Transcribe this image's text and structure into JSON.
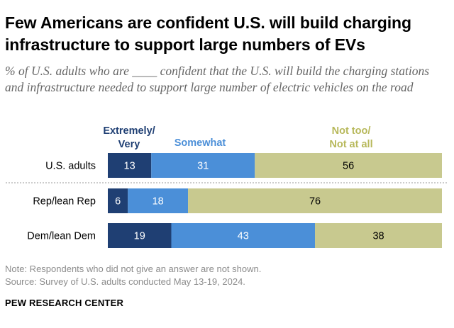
{
  "title": "Few Americans are confident U.S. will build charging infrastructure to support large numbers of EVs",
  "subtitle": "% of U.S. adults who are ____ confident that the U.S. will build the charging stations and infrastructure needed to support large number of electric vehicles on the road",
  "chart_data": {
    "type": "bar",
    "orientation": "horizontal",
    "stacked": true,
    "categories": [
      "U.S. adults",
      "Rep/lean Rep",
      "Dem/lean Dem"
    ],
    "series": [
      {
        "name": "Extremely/ Very",
        "legend_lines": [
          "Extremely/",
          "Very"
        ],
        "values": [
          13,
          6,
          19
        ],
        "color": "#1f3f73",
        "label_color": "#ffffff"
      },
      {
        "name": "Somewhat",
        "legend_lines": [
          "Somewhat"
        ],
        "values": [
          31,
          18,
          43
        ],
        "color": "#4b8fd8",
        "label_color": "#ffffff"
      },
      {
        "name": "Not too/ Not at all",
        "legend_lines": [
          "Not too/",
          "Not at all"
        ],
        "values": [
          56,
          76,
          38
        ],
        "color": "#c8c98f",
        "label_color": "#000000"
      }
    ],
    "xlim": [
      0,
      100
    ],
    "grid": false,
    "legend_position": "top"
  },
  "notes": {
    "note": "Note: Respondents who did not give an answer are not shown.",
    "source": "Source: Survey of U.S. adults conducted May 13-19, 2024."
  },
  "brand": "PEW RESEARCH CENTER"
}
